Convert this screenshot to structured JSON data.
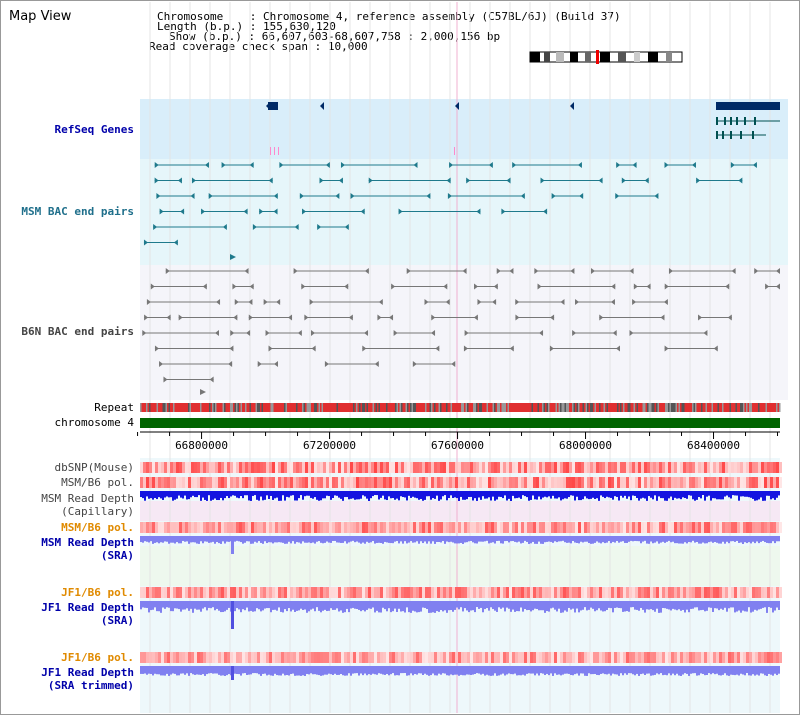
{
  "title": "Map View",
  "info": {
    "chromosome_key": "Chromosome",
    "chromosome_val": "Chromosome 4, reference assembly (C57BL/6J) (Build 37)",
    "length_key": "Length (b.p.)",
    "length_val": "155,630,120",
    "show_key": "Show (b.p.)",
    "show_val": "66,607,603-68,607,758 : 2,000,156 bp",
    "coverage_key": "Read coverage check span",
    "coverage_val": "10,000"
  },
  "tracks": {
    "refseq": "RefSeq Genes",
    "msm_bac": "MSM BAC end pairs",
    "b6n_bac": "B6N BAC end pairs",
    "repeat": "Repeat",
    "chromosome": "chromosome 4",
    "dbsnp": "dbSNP(Mouse)",
    "msm_b6_pol_1": "MSM/B6 pol.",
    "msm_depth_cap_1": "MSM Read Depth",
    "msm_depth_cap_2": "(Capillary)",
    "msm_b6_pol_2": "MSM/B6 pol.",
    "msm_depth_sra_1": "MSM Read Depth",
    "msm_depth_sra_2": "(SRA)",
    "jf1_b6_pol_1": "JF1/B6 pol.",
    "jf1_depth_sra_1": "JF1 Read Depth",
    "jf1_depth_sra_2": "(SRA)",
    "jf1_b6_pol_2": "JF1/B6 pol.",
    "jf1_depth_trim_1": "JF1 Read Depth",
    "jf1_depth_trim_2": "(SRA trimmed)"
  },
  "axis": {
    "range": [
      66607603,
      68607758
    ],
    "ticks": [
      "66800000",
      "67200000",
      "67600000",
      "68000000",
      "68400000"
    ],
    "tick_values": [
      66800000,
      67200000,
      67600000,
      68000000,
      68400000
    ]
  },
  "colors": {
    "refseq_bg": "#d9eefa",
    "msm_bg": "#e6f6fa",
    "b6n_bg": "#f5f5fa",
    "gene": "#002a66",
    "msm_feature": "#1f7a8c",
    "b6n_feature": "#777777",
    "chromosome_bar": "#006400",
    "repeat_red": "#e03030",
    "depth_blue": "#1414e0",
    "depth_light": "#8080f0"
  }
}
